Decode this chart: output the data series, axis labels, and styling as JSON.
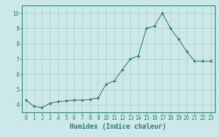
{
  "x": [
    0,
    1,
    2,
    3,
    4,
    5,
    6,
    7,
    8,
    9,
    10,
    11,
    12,
    13,
    14,
    15,
    16,
    17,
    18,
    19,
    20,
    21,
    22,
    23
  ],
  "y": [
    4.3,
    3.9,
    3.8,
    4.1,
    4.2,
    4.25,
    4.3,
    4.3,
    4.35,
    4.45,
    5.35,
    5.55,
    6.3,
    7.0,
    7.2,
    9.0,
    9.15,
    10.0,
    9.0,
    8.3,
    7.5,
    6.85,
    6.85,
    6.85
  ],
  "line_color": "#2e7d6e",
  "marker": "D",
  "marker_size": 2.0,
  "bg_color": "#cce8e8",
  "grid_color": "#b0d0d0",
  "xlabel": "Humidex (Indice chaleur)",
  "xlabel_fontsize": 7,
  "ylim": [
    3.5,
    10.5
  ],
  "xlim": [
    -0.5,
    23.5
  ],
  "yticks": [
    4,
    5,
    6,
    7,
    8,
    9,
    10
  ],
  "xticks": [
    0,
    1,
    2,
    3,
    4,
    5,
    6,
    7,
    8,
    9,
    10,
    11,
    12,
    13,
    14,
    15,
    16,
    17,
    18,
    19,
    20,
    21,
    22,
    23
  ],
  "tick_fontsize": 5.5,
  "spine_color": "#2e7d6e",
  "line_width": 0.8
}
